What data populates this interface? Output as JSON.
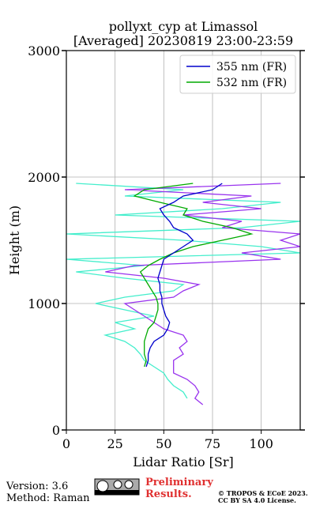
{
  "chart_data": {
    "type": "line",
    "title": "pollyxt_cyp at Limassol",
    "subtitle": "[Averaged] 20230819 23:00-23:59",
    "x_label": "Lidar Ratio [Sr]",
    "y_label": "Height (m)",
    "xlim": [
      0,
      120
    ],
    "xticks": [
      0,
      25,
      50,
      75,
      100
    ],
    "ylim": [
      0,
      3000
    ],
    "yticks": [
      0,
      1000,
      2000,
      3000
    ],
    "grid": true,
    "legend": "upper right",
    "heights": [
      200,
      250,
      300,
      350,
      400,
      450,
      500,
      550,
      600,
      650,
      700,
      750,
      800,
      850,
      900,
      950,
      1000,
      1050,
      1100,
      1150,
      1200,
      1250,
      1300,
      1350,
      1400,
      1450,
      1500,
      1550,
      1600,
      1650,
      1700,
      1750,
      1800,
      1850,
      1900,
      1950
    ],
    "series": [
      {
        "name": "355 nm (FR)",
        "color": "#0000cc",
        "values": [
          null,
          null,
          null,
          null,
          null,
          null,
          41,
          42,
          42,
          43,
          45,
          50,
          52,
          53,
          51,
          50,
          49,
          49,
          48,
          48,
          47,
          48,
          49,
          50,
          55,
          60,
          65,
          62,
          55,
          53,
          50,
          48,
          55,
          60,
          75,
          80
        ]
      },
      {
        "name": "532 nm (FR)",
        "color": "#00aa00",
        "values": [
          null,
          null,
          null,
          null,
          null,
          null,
          40,
          41,
          40,
          40,
          40,
          41,
          42,
          45,
          46,
          47,
          47,
          46,
          44,
          42,
          40,
          38,
          42,
          48,
          55,
          65,
          80,
          95,
          85,
          70,
          60,
          62,
          48,
          35,
          40,
          65
        ]
      },
      {
        "color": "#9933ee",
        "values": [
          70,
          66,
          68,
          66,
          62,
          55,
          55,
          55,
          60,
          58,
          62,
          60,
          50,
          45,
          40,
          35,
          30,
          55,
          60,
          68,
          50,
          20,
          35,
          110,
          90,
          120,
          110,
          120,
          80,
          90,
          60,
          100,
          70,
          95,
          30,
          110
        ]
      },
      {
        "color": "#44eecc",
        "values": [
          null,
          62,
          60,
          55,
          52,
          50,
          45,
          40,
          38,
          35,
          30,
          20,
          35,
          25,
          45,
          30,
          15,
          30,
          55,
          60,
          30,
          5,
          40,
          0,
          120,
          100,
          60,
          0,
          90,
          120,
          25,
          80,
          110,
          30,
          60,
          5
        ]
      }
    ]
  },
  "footer": {
    "version": "Version: 3.6",
    "method": "Method: Raman",
    "preliminary": "Preliminary",
    "results": "Results.",
    "copyright": "© TROPOS & ECoE 2023.",
    "license": "CC BY SA 4.0 License."
  }
}
